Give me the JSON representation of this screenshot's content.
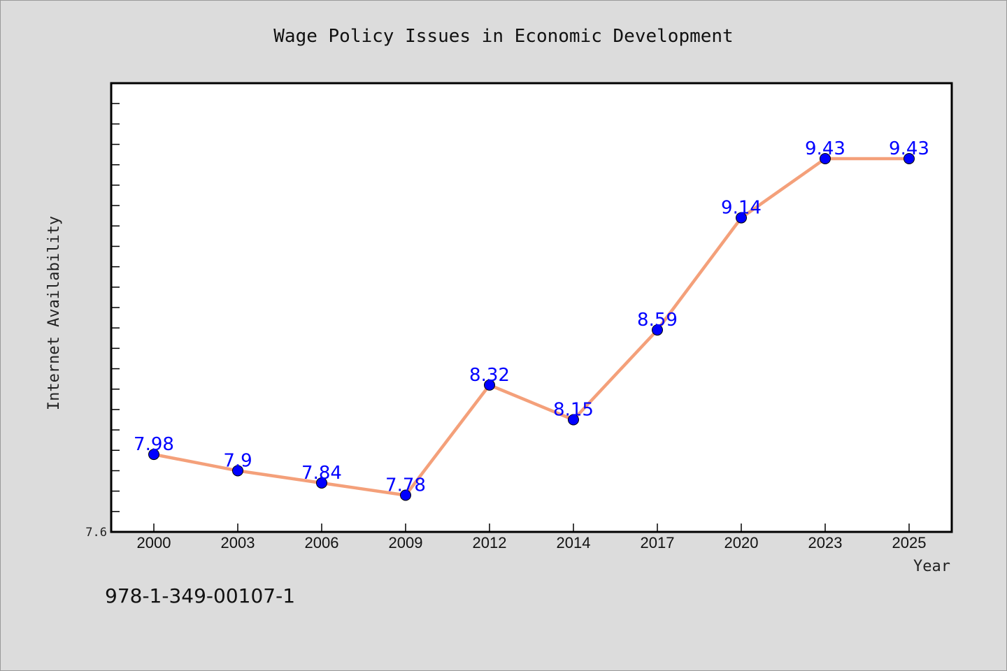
{
  "chart_data": {
    "type": "line",
    "title": "Wage Policy Issues in Economic Development",
    "xlabel": "Year",
    "ylabel": "Internet Availability",
    "categories": [
      "2000",
      "2003",
      "2006",
      "2009",
      "2012",
      "2014",
      "2017",
      "2020",
      "2023",
      "2025"
    ],
    "series": [
      {
        "values": [
          7.98,
          7.9,
          7.84,
          7.78,
          8.32,
          8.15,
          8.59,
          9.14,
          9.43,
          9.43
        ],
        "labels": [
          "7.98",
          "7.9",
          "7.84",
          "7.78",
          "8.32",
          "8.15",
          "8.59",
          "9.14",
          "9.43",
          "9.43"
        ],
        "line_color": "#f4a07a",
        "marker_color": "#0000ff"
      }
    ],
    "ylim": [
      7.6,
      9.8
    ],
    "yticks_labeled": [
      "7.6"
    ],
    "grid": false,
    "legend": "none"
  },
  "footer": {
    "isbn": "978-1-349-00107-1"
  },
  "colors": {
    "background": "#dcdcdc",
    "plot_background": "#ffffff",
    "line": "#f4a07a",
    "marker": "#0000ff",
    "data_label": "#0000ff"
  }
}
